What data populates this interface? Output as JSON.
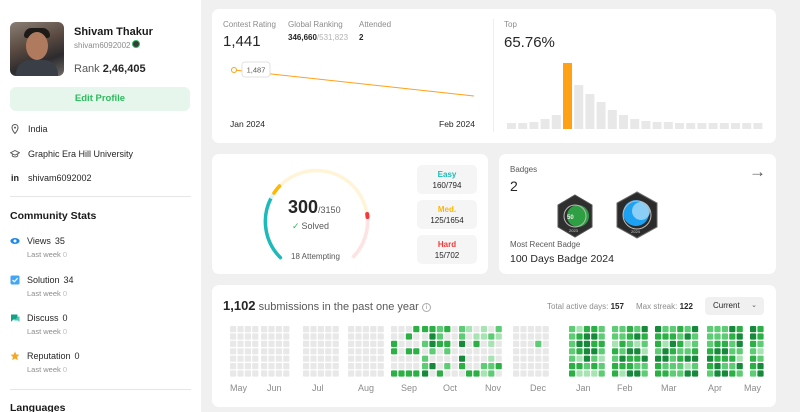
{
  "profile": {
    "name": "Shivam Thakur",
    "handle": "shivam6092002",
    "rank_label": "Rank",
    "rank_value": "2,46,405",
    "edit_label": "Edit Profile",
    "location": "India",
    "school": "Graphic Era Hill University",
    "linkedin": "shivam6092002"
  },
  "community": {
    "title": "Community Stats",
    "items": [
      {
        "label": "Views",
        "value": "35",
        "sub": "Last week",
        "sub_value": "0",
        "color": "#1e88e5",
        "icon": "eye-icon"
      },
      {
        "label": "Solution",
        "value": "34",
        "sub": "Last week",
        "sub_value": "0",
        "color": "#2196f3",
        "icon": "solution-icon"
      },
      {
        "label": "Discuss",
        "value": "0",
        "sub": "Last week",
        "sub_value": "0",
        "color": "#16a085",
        "icon": "discuss-icon"
      },
      {
        "label": "Reputation",
        "value": "0",
        "sub": "Last week",
        "sub_value": "0",
        "color": "#f5a623",
        "icon": "star-icon"
      }
    ],
    "languages_title": "Languages"
  },
  "contest": {
    "rating_label": "Contest Rating",
    "rating_value": "1,441",
    "global_label": "Global Ranking",
    "global_value": "346,660",
    "global_total": "/531,823",
    "attended_label": "Attended",
    "attended_value": "2",
    "tooltip_value": "1,487",
    "x_start": "Jan 2024",
    "x_end": "Feb 2024",
    "top_label": "Top",
    "top_value": "65.76%",
    "histogram_accent": "#ffa116",
    "histogram_color": "#e8e8e8"
  },
  "solved": {
    "count": "300",
    "total": "/3150",
    "label": "Solved",
    "attempting": "18 Attempting",
    "difficulties": [
      {
        "name": "Easy",
        "value": "160/794",
        "color": "#1cbaba"
      },
      {
        "name": "Med.",
        "value": "125/1654",
        "color": "#ffb700"
      },
      {
        "name": "Hard",
        "value": "15/702",
        "color": "#f63737"
      }
    ]
  },
  "badges": {
    "label": "Badges",
    "count": "2",
    "recent_label": "Most Recent Badge",
    "recent_value": "100 Days Badge 2024",
    "badge1_text": "2023",
    "badge2_text": "2024"
  },
  "submissions": {
    "count": "1,102",
    "label": "submissions in the past one year",
    "active_label": "Total active days:",
    "active_value": "157",
    "streak_label": "Max streak:",
    "streak_value": "122",
    "dropdown": "Current",
    "months": [
      "May",
      "Jun",
      "Jul",
      "Aug",
      "Sep",
      "Oct",
      "Nov",
      "Dec",
      "Jan",
      "Feb",
      "Mar",
      "Apr",
      "May"
    ]
  }
}
